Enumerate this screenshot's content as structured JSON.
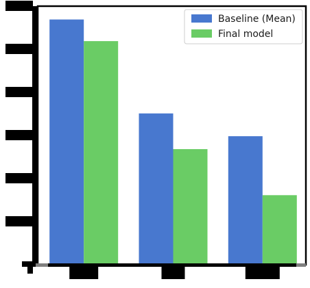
{
  "chart_data": {
    "type": "bar",
    "title": "",
    "xlabel": "",
    "ylabel": "",
    "categories": [
      "",
      "",
      ""
    ],
    "ylim": [
      0,
      6.8
    ],
    "y_tick_count": 7,
    "grid": false,
    "legend_position": "top-right",
    "series": [
      {
        "name": "Baseline (Mean)",
        "color": "#4878cf",
        "values": [
          6.45,
          3.98,
          3.38
        ]
      },
      {
        "name": "Final model",
        "color": "#6acc65",
        "values": [
          5.88,
          3.04,
          1.83
        ]
      }
    ]
  }
}
